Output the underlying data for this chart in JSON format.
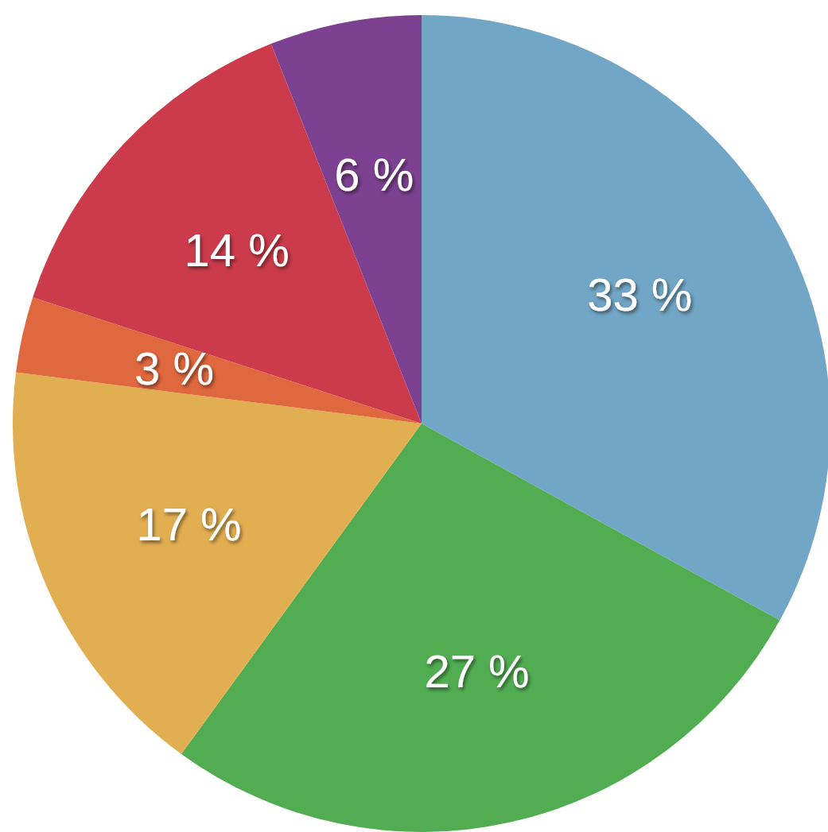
{
  "chart_data": {
    "type": "pie",
    "categories": [
      null,
      null,
      null,
      null,
      null,
      null
    ],
    "values": [
      33,
      27,
      17,
      3,
      14,
      6
    ],
    "colors": [
      "#72a6c6",
      "#52ad52",
      "#e2ae52",
      "#e0683e",
      "#cc3b4b",
      "#7c4190"
    ],
    "value_labels": [
      "33 %",
      "27 %",
      "17 %",
      "3 %",
      "14 %",
      "6 %"
    ]
  }
}
